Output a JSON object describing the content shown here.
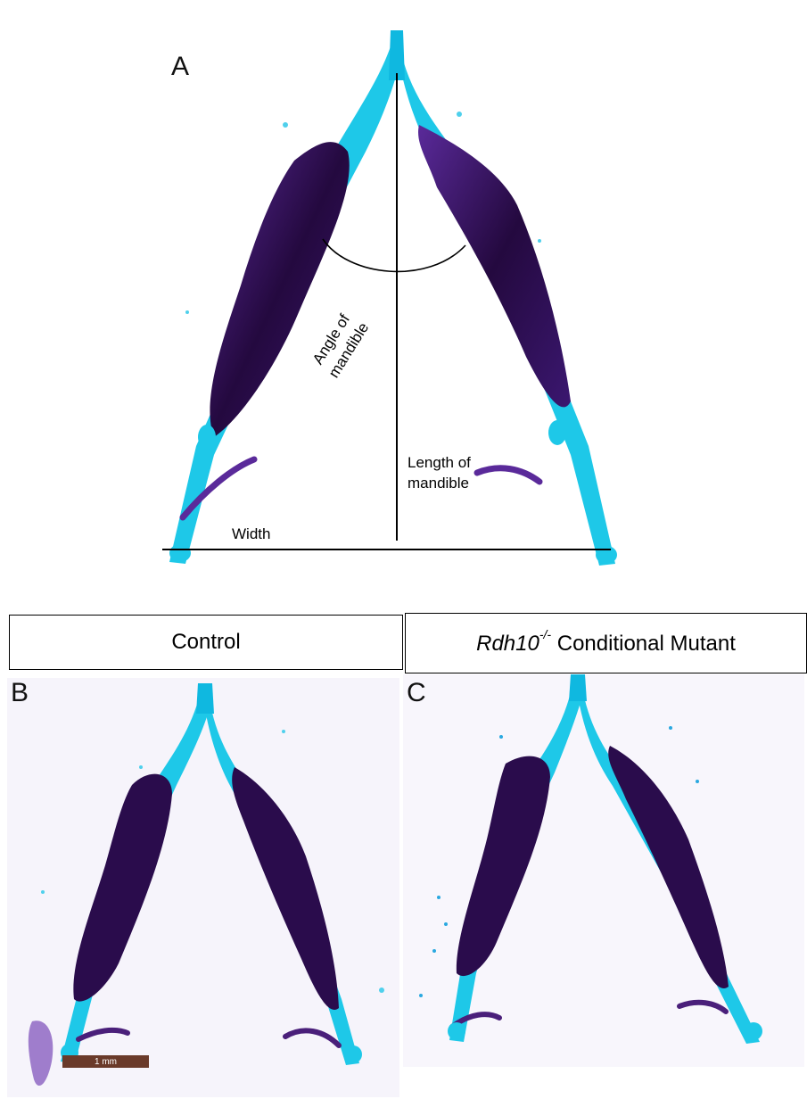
{
  "panel_a": {
    "letter": "A",
    "angle_label": "Angle of mandible",
    "length_label_line1": "Length of",
    "length_label_line2": "mandible",
    "width_label": "Width"
  },
  "labels": {
    "control": "Control",
    "mutant_gene": "Rdh10",
    "mutant_sup": "-/-",
    "mutant_rest": " Conditional Mutant"
  },
  "panel_b": {
    "letter": "B",
    "scale_bar": "1 mm"
  },
  "panel_c": {
    "letter": "C"
  },
  "colors": {
    "cartilage": "#1ec8e8",
    "cartilage_dark": "#0a7fc4",
    "bone": "#3a1566",
    "bone_dark": "#1d0838",
    "annotation": "#000000"
  }
}
